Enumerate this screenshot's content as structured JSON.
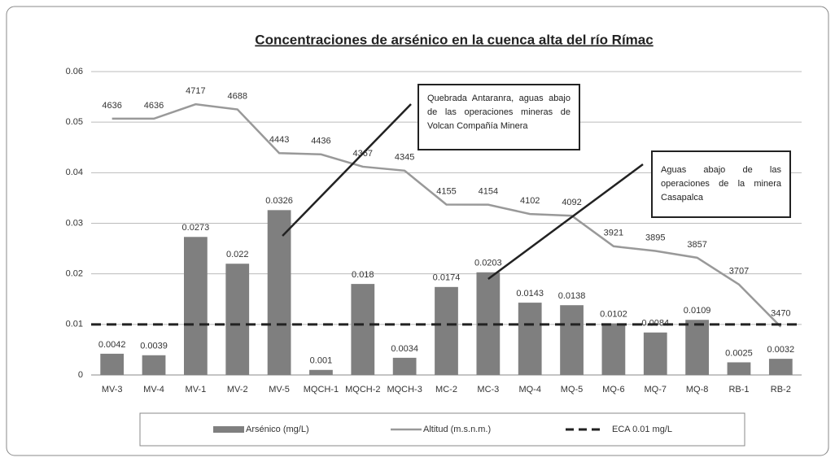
{
  "chart_data": {
    "type": "bar",
    "title": "Concentraciones de arsénico  en la cuenca alta del río Rímac",
    "categories": [
      "MV-3",
      "MV-4",
      "MV-1",
      "MV-2",
      "MV-5",
      "MQCH-1",
      "MQCH-2",
      "MQCH-3",
      "MC-2",
      "MC-3",
      "MQ-4",
      "MQ-5",
      "MQ-6",
      "MQ-7",
      "MQ-8",
      "RB-1",
      "RB-2"
    ],
    "series": [
      {
        "name": "Arsénico (mg/L)",
        "type": "bar",
        "color": "#7f7f7f",
        "values": [
          0.0042,
          0.0039,
          0.0273,
          0.022,
          0.0326,
          0.001,
          0.018,
          0.0034,
          0.0174,
          0.0203,
          0.0143,
          0.0138,
          0.0102,
          0.0084,
          0.0109,
          0.0025,
          0.0032
        ]
      },
      {
        "name": "Altitud (m.s.n.m.)",
        "type": "line",
        "axis": "y2",
        "color": "#999999",
        "values": [
          4636,
          4636,
          4717,
          4688,
          4443,
          4436,
          4367,
          4345,
          4155,
          4154,
          4102,
          4092,
          3921,
          3895,
          3857,
          3707,
          3470
        ]
      }
    ],
    "reference_line": {
      "name": "ECA 0.01 mg/L",
      "value": 0.01,
      "color": "#222222"
    },
    "ylim": [
      0,
      0.06
    ],
    "yticks": [
      0,
      0.01,
      0.02,
      0.03,
      0.04,
      0.05,
      0.06
    ],
    "y2lim": [
      3200,
      4900
    ],
    "grid": true,
    "annotations": [
      {
        "text": "Quebrada Antaranra, aguas abajo de las operaciones mineras de Volcan Compañía Minera",
        "category": 4
      },
      {
        "text": "Aguas abajo de las operaciones de la minera Casapalca",
        "category": 9
      }
    ]
  }
}
